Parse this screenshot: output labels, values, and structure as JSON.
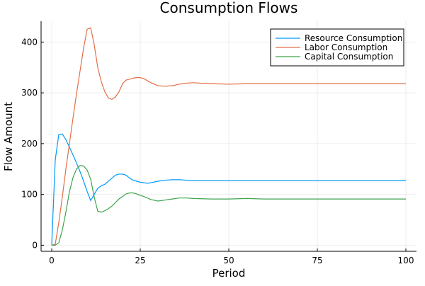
{
  "chart_data": {
    "type": "line",
    "title": "Consumption Flows",
    "xlabel": "Period",
    "ylabel": "Flow Amount",
    "xlim": [
      -3,
      103
    ],
    "ylim": [
      -12,
      441
    ],
    "xticks": [
      0,
      25,
      50,
      75,
      100
    ],
    "yticks": [
      0,
      100,
      200,
      300,
      400
    ],
    "grid": true,
    "legend_position": "top-right",
    "series": [
      {
        "name": "Resource Consumption",
        "color": "#009af9",
        "x": [
          0,
          1,
          2,
          3,
          4,
          5,
          6,
          7,
          8,
          9,
          10,
          11,
          12,
          13,
          14,
          15,
          16,
          17,
          18,
          19,
          20,
          21,
          22,
          23,
          24,
          25,
          26,
          27,
          28,
          30,
          32,
          34,
          36,
          38,
          40,
          45,
          50,
          60,
          70,
          80,
          90,
          100
        ],
        "values": [
          0,
          168,
          218,
          219,
          208,
          193,
          178,
          162,
          145,
          126,
          106,
          88,
          100,
          112,
          117,
          120,
          126,
          132,
          138,
          140,
          140,
          138,
          132,
          128,
          126,
          124,
          123,
          122,
          123,
          126,
          128,
          129,
          129,
          128,
          127,
          127,
          127,
          127,
          127,
          127,
          127,
          127
        ]
      },
      {
        "name": "Labor Consumption",
        "color": "#e26f46",
        "x": [
          0,
          1,
          2,
          3,
          4,
          5,
          6,
          7,
          8,
          9,
          10,
          11,
          12,
          13,
          14,
          15,
          16,
          17,
          18,
          19,
          20,
          21,
          22,
          23,
          24,
          25,
          26,
          27,
          28,
          30,
          32,
          34,
          36,
          38,
          40,
          42,
          45,
          50,
          55,
          60,
          70,
          80,
          90,
          100
        ],
        "values": [
          0,
          2,
          45,
          95,
          150,
          200,
          250,
          298,
          343,
          388,
          425,
          428,
          395,
          350,
          322,
          302,
          290,
          287,
          292,
          302,
          318,
          325,
          327,
          329,
          330,
          330,
          328,
          324,
          320,
          314,
          313,
          314,
          317,
          319,
          320,
          319,
          318,
          317,
          318,
          318,
          318,
          318,
          318,
          318
        ]
      },
      {
        "name": "Capital Consumption",
        "color": "#3da44d",
        "x": [
          0,
          1,
          2,
          3,
          4,
          5,
          6,
          7,
          8,
          9,
          10,
          11,
          12,
          13,
          14,
          15,
          16,
          17,
          18,
          19,
          20,
          21,
          22,
          23,
          24,
          25,
          26,
          27,
          28,
          30,
          32,
          34,
          36,
          38,
          40,
          45,
          50,
          55,
          60,
          70,
          80,
          90,
          100
        ],
        "values": [
          0,
          0,
          5,
          30,
          65,
          105,
          133,
          150,
          157,
          156,
          148,
          130,
          95,
          67,
          65,
          68,
          72,
          77,
          84,
          91,
          96,
          101,
          103,
          103,
          101,
          98,
          96,
          93,
          90,
          87,
          89,
          91,
          93,
          93,
          92,
          91,
          91,
          92,
          91,
          91,
          91,
          91,
          91
        ]
      }
    ]
  }
}
